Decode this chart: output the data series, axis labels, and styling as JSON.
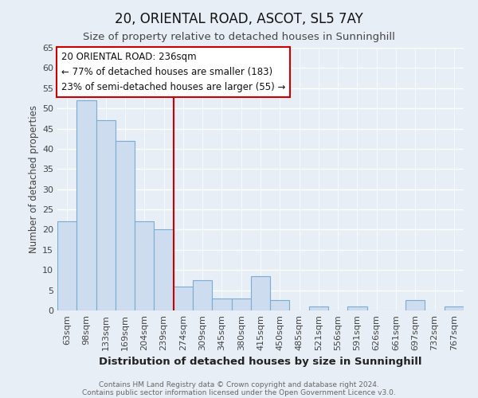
{
  "title": "20, ORIENTAL ROAD, ASCOT, SL5 7AY",
  "subtitle": "Size of property relative to detached houses in Sunninghill",
  "xlabel": "Distribution of detached houses by size in Sunninghill",
  "ylabel": "Number of detached properties",
  "bar_labels": [
    "63sqm",
    "98sqm",
    "133sqm",
    "169sqm",
    "204sqm",
    "239sqm",
    "274sqm",
    "309sqm",
    "345sqm",
    "380sqm",
    "415sqm",
    "450sqm",
    "485sqm",
    "521sqm",
    "556sqm",
    "591sqm",
    "626sqm",
    "661sqm",
    "697sqm",
    "732sqm",
    "767sqm"
  ],
  "bar_values": [
    22,
    52,
    47,
    42,
    22,
    20,
    6,
    7.5,
    3,
    3,
    8.5,
    2.5,
    0,
    1,
    0,
    1,
    0,
    0,
    2.5,
    0,
    1
  ],
  "bar_color": "#cddcee",
  "bar_edge_color": "#7aadd4",
  "vline_color": "#cc0000",
  "ylim": [
    0,
    65
  ],
  "yticks": [
    0,
    5,
    10,
    15,
    20,
    25,
    30,
    35,
    40,
    45,
    50,
    55,
    60,
    65
  ],
  "annotation_title": "20 ORIENTAL ROAD: 236sqm",
  "annotation_line1": "← 77% of detached houses are smaller (183)",
  "annotation_line2": "23% of semi-detached houses are larger (55) →",
  "annotation_box_color": "#cc0000",
  "footer_line1": "Contains HM Land Registry data © Crown copyright and database right 2024.",
  "footer_line2": "Contains public sector information licensed under the Open Government Licence v3.0.",
  "bg_color": "#e8eef5",
  "grid_color": "#ffffff",
  "title_fontsize": 12,
  "subtitle_fontsize": 9.5,
  "xlabel_fontsize": 9.5,
  "ylabel_fontsize": 8.5,
  "tick_fontsize": 8,
  "annotation_fontsize": 8.5,
  "footer_fontsize": 6.5
}
